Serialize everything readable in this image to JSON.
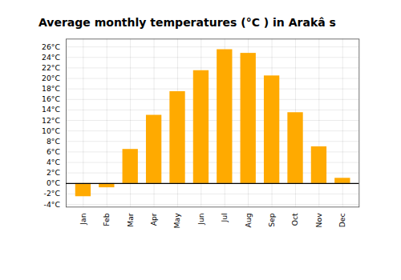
{
  "chart_data": {
    "type": "bar",
    "title": "Average monthly temperatures (°C ) in Arakâ  s",
    "categories": [
      "Jan",
      "Feb",
      "Mar",
      "Apr",
      "May",
      "Jun",
      "Jul",
      "Aug",
      "Sep",
      "Oct",
      "Nov",
      "Dec"
    ],
    "values": [
      -2.5,
      -0.8,
      6.5,
      13.0,
      17.5,
      21.5,
      25.5,
      24.8,
      20.5,
      13.5,
      7.0,
      1.0
    ],
    "color": "#FFAA00",
    "ylim": [
      -4.5,
      27.5
    ],
    "yticks": [
      {
        "value": -4,
        "label": "-4°C"
      },
      {
        "value": -2,
        "label": "-2°C"
      },
      {
        "value": 0,
        "label": "0°C"
      },
      {
        "value": 2,
        "label": "2°C"
      },
      {
        "value": 4,
        "label": "4°C"
      },
      {
        "value": 6,
        "label": "6°C"
      },
      {
        "value": 8,
        "label": "8°C"
      },
      {
        "value": 10,
        "label": "10°C"
      },
      {
        "value": 12,
        "label": "12°C"
      },
      {
        "value": 14,
        "label": "14°C"
      },
      {
        "value": 16,
        "label": "16°C"
      },
      {
        "value": 18,
        "label": "18°C"
      },
      {
        "value": 20,
        "label": "20°C"
      },
      {
        "value": 22,
        "label": "22°C"
      },
      {
        "value": 24,
        "label": "24°C"
      },
      {
        "value": 26,
        "label": "26°C"
      }
    ],
    "grid": true
  }
}
